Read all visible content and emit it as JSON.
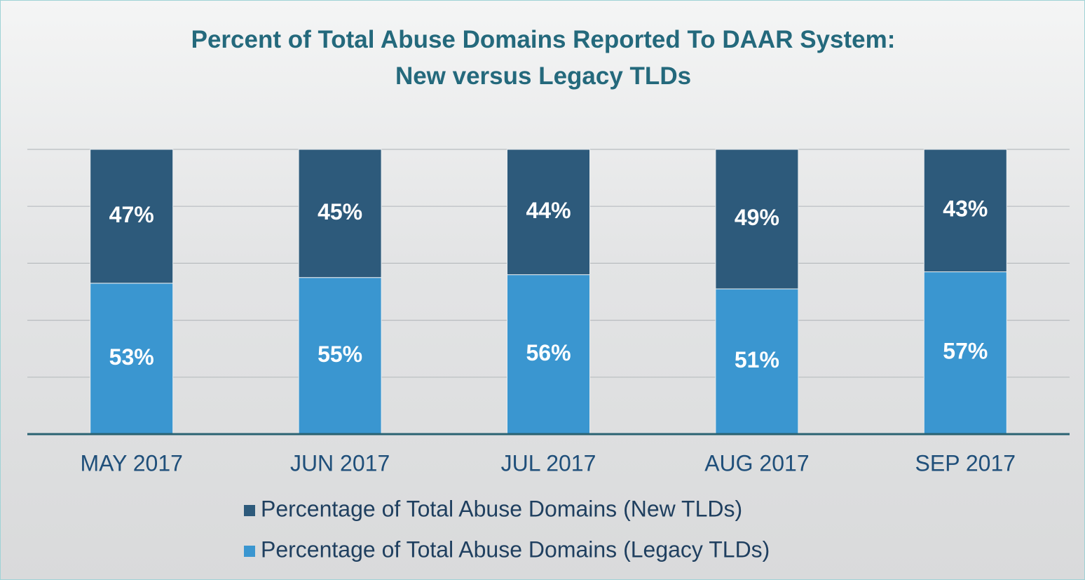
{
  "chart_data": {
    "type": "bar",
    "stacked": true,
    "title": [
      "Percent of Total Abuse Domains Reported To DAAR System:",
      "New versus Legacy TLDs"
    ],
    "categories": [
      "MAY 2017",
      "JUN 2017",
      "JUL 2017",
      "AUG 2017",
      "SEP 2017"
    ],
    "series": [
      {
        "name": "Percentage of Total Abuse Domains (New TLDs)",
        "color": "#2d5a7b",
        "values": [
          47,
          45,
          44,
          49,
          43
        ],
        "value_labels": [
          "47%",
          "45%",
          "44%",
          "49%",
          "43%"
        ]
      },
      {
        "name": "Percentage of Total Abuse Domains (Legacy  TLDs)",
        "color": "#3a96d0",
        "values": [
          53,
          55,
          56,
          51,
          57
        ],
        "value_labels": [
          "53%",
          "55%",
          "56%",
          "51%",
          "57%"
        ]
      }
    ],
    "ylim": [
      0,
      100
    ],
    "yticks": [
      0,
      20,
      40,
      60,
      80,
      100
    ],
    "grid": true,
    "legend": "bottom"
  }
}
